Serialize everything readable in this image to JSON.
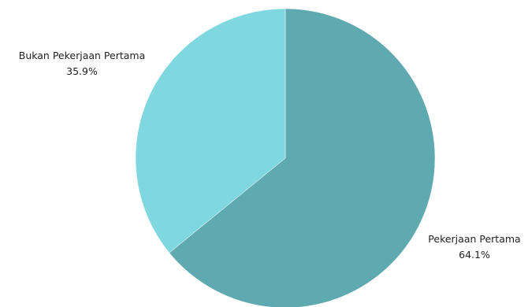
{
  "chart_data": {
    "type": "pie",
    "title": "",
    "slices": [
      {
        "label": "Pekerjaan Pertama",
        "percent_label": "64.1%",
        "value": 64.1,
        "color": "#5fa9b0"
      },
      {
        "label": "Bukan Pekerjaan Pertama",
        "percent_label": "35.9%",
        "value": 35.9,
        "color": "#7fd7e0"
      }
    ],
    "start_angle": "top (12 o'clock)",
    "direction": "clockwise",
    "legend": "none"
  }
}
